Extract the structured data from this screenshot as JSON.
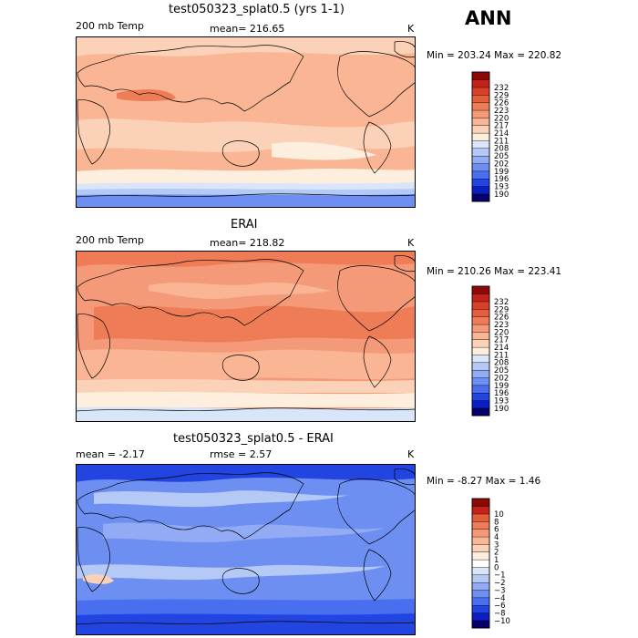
{
  "season": "ANN",
  "colorbar_palettes": {
    "abs": [
      "#08006a",
      "#0a1ec4",
      "#2244e0",
      "#4a6ef0",
      "#6d8ff2",
      "#92abf4",
      "#b5c9f6",
      "#d9e6fa",
      "#fdeedd",
      "#fbd2b8",
      "#f9b594",
      "#f49a78",
      "#ee7c57",
      "#e65d3b",
      "#d8402a",
      "#c22318",
      "#8e0808"
    ],
    "diff": [
      "#08006a",
      "#0a1ec4",
      "#2244e0",
      "#4a6ef0",
      "#6d8ff2",
      "#92abf4",
      "#b5c9f6",
      "#d9e6fa",
      "#ffffff",
      "#fdeedd",
      "#fbd2b8",
      "#f9b594",
      "#f49a78",
      "#ee7c57",
      "#e65d3b",
      "#c22318",
      "#8e0808"
    ]
  },
  "panels": [
    {
      "title": "test050323_splat0.5 (yrs 1-1)",
      "left_label": "200 mb Temp",
      "mean_text": "mean= 216.65",
      "units": "K",
      "minmax": "Min = 203.24  Max = 220.82",
      "background_color": "#f9b594",
      "colorbar": {
        "palette": "abs",
        "levels": [
          "190",
          "193",
          "196",
          "199",
          "202",
          "205",
          "208",
          "211",
          "214",
          "217",
          "220",
          "223",
          "226",
          "229",
          "232"
        ]
      },
      "chart_data": {
        "type": "heatmap",
        "field": "200 mb temperature",
        "units": "K",
        "mean": 216.65,
        "min": 203.24,
        "max": 220.82,
        "contour_levels": [
          190,
          193,
          196,
          199,
          202,
          205,
          208,
          211,
          214,
          217,
          220,
          223,
          226,
          229,
          232
        ]
      }
    },
    {
      "title": "ERAI",
      "left_label": "200 mb Temp",
      "mean_text": "mean= 218.82",
      "units": "K",
      "minmax": "Min = 210.26  Max = 223.41",
      "background_color": "#f49a78",
      "colorbar": {
        "palette": "abs",
        "levels": [
          "190",
          "193",
          "196",
          "199",
          "202",
          "205",
          "208",
          "211",
          "214",
          "217",
          "220",
          "223",
          "226",
          "229",
          "232"
        ]
      },
      "chart_data": {
        "type": "heatmap",
        "field": "200 mb temperature",
        "units": "K",
        "mean": 218.82,
        "min": 210.26,
        "max": 223.41,
        "contour_levels": [
          190,
          193,
          196,
          199,
          202,
          205,
          208,
          211,
          214,
          217,
          220,
          223,
          226,
          229,
          232
        ]
      }
    },
    {
      "title": "test050323_splat0.5 - ERAI",
      "left_label": "mean =   -2.17",
      "mean_text": "rmse =    2.57",
      "units": "K",
      "minmax": "Min =   -8.27  Max =    1.46",
      "background_color": "#6d8ff2",
      "colorbar": {
        "palette": "diff",
        "levels": [
          "−10",
          "−8",
          "−6",
          "−4",
          "−3",
          "−2",
          "−1",
          "0",
          "1",
          "2",
          "3",
          "4",
          "6",
          "8",
          "10"
        ]
      },
      "chart_data": {
        "type": "heatmap",
        "field": "200 mb temperature difference",
        "units": "K",
        "mean": -2.17,
        "rmse": 2.57,
        "min": -8.27,
        "max": 1.46,
        "contour_levels": [
          -10,
          -8,
          -6,
          -4,
          -3,
          -2,
          -1,
          0,
          1,
          2,
          3,
          4,
          6,
          8,
          10
        ]
      }
    }
  ]
}
